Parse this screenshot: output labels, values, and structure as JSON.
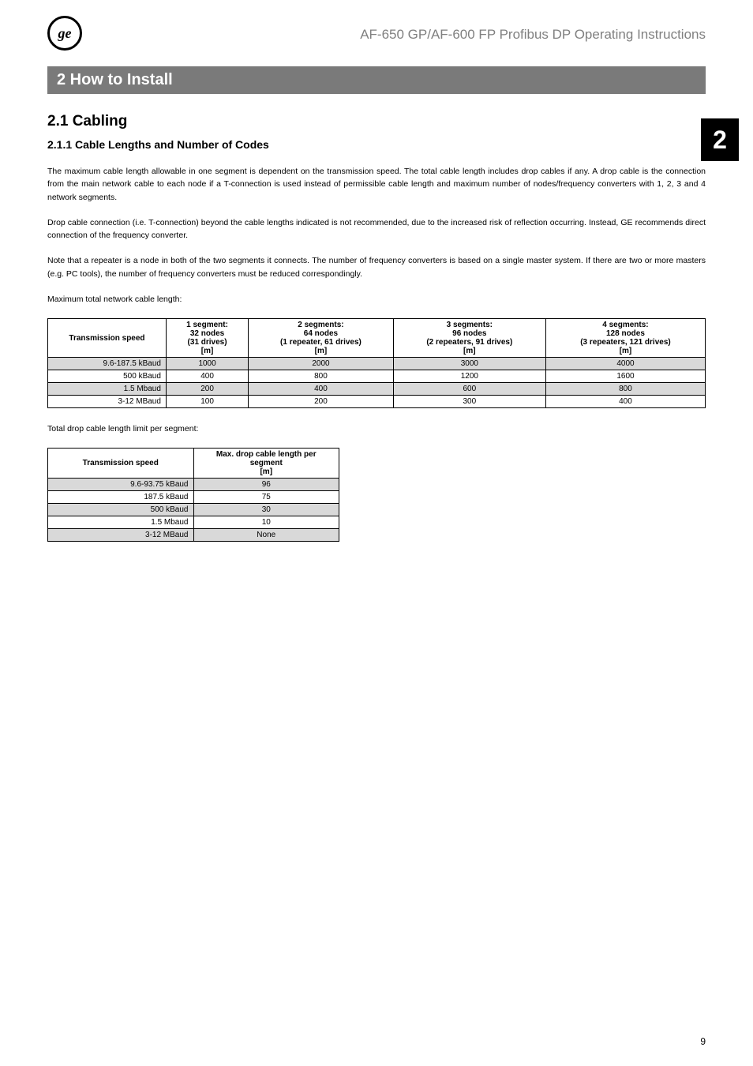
{
  "header": {
    "logo_text": "ge",
    "doc_title": "AF-650 GP/AF-600 FP Profibus DP Operating Instructions"
  },
  "side_tab": "2",
  "chapter": {
    "bar_title": "2 How to Install",
    "section_num": "2.1 Cabling",
    "subsection": "2.1.1  Cable Lengths and Number of Codes"
  },
  "paragraphs": {
    "p1": "The maximum cable length allowable in one segment is dependent on the transmission speed. The total cable length includes drop cables if any. A drop cable is the connection from the main network cable to each node if a T-connection is used instead of permissible cable length and maximum number of nodes/frequency converters with 1, 2, 3 and 4 network segments.",
    "p2": "Drop cable connection (i.e. T-connection) beyond the cable lengths indicated is not recommended, due to the increased risk of reflection occurring. Instead, GE recommends direct connection of the frequency converter.",
    "p3": "Note that a repeater is a node in both of the two segments it connects. The number of frequency converters is based on a single master system. If there are two or more masters (e.g. PC tools), the number of frequency converters must be reduced correspondingly.",
    "p4": "Maximum total network cable length:",
    "p5": "Total drop cable length limit per segment:"
  },
  "table1": {
    "headers": {
      "c0": "Transmission speed",
      "c1_l1": "1 segment:",
      "c1_l2": "32 nodes",
      "c1_l3": "(31 drives)",
      "c1_l4": "[m]",
      "c2_l1": "2 segments:",
      "c2_l2": "64 nodes",
      "c2_l3": "(1 repeater, 61 drives)",
      "c2_l4": "[m]",
      "c3_l1": "3 segments:",
      "c3_l2": "96 nodes",
      "c3_l3": "(2 repeaters, 91 drives)",
      "c3_l4": "[m]",
      "c4_l1": "4 segments:",
      "c4_l2": "128 nodes",
      "c4_l3": "(3 repeaters, 121 drives)",
      "c4_l4": "[m]"
    },
    "rows": [
      {
        "shaded": true,
        "c0": "9.6-187.5 kBaud",
        "c1": "1000",
        "c2": "2000",
        "c3": "3000",
        "c4": "4000"
      },
      {
        "shaded": false,
        "c0": "500 kBaud",
        "c1": "400",
        "c2": "800",
        "c3": "1200",
        "c4": "1600"
      },
      {
        "shaded": true,
        "c0": "1.5 Mbaud",
        "c1": "200",
        "c2": "400",
        "c3": "600",
        "c4": "800"
      },
      {
        "shaded": false,
        "c0": "3-12 MBaud",
        "c1": "100",
        "c2": "200",
        "c3": "300",
        "c4": "400"
      }
    ]
  },
  "table2": {
    "headers": {
      "c0": "Transmission speed",
      "c1_l1": "Max. drop cable length per",
      "c1_l2": "segment",
      "c1_l3": "[m]"
    },
    "rows": [
      {
        "shaded": true,
        "c0": "9.6-93.75 kBaud",
        "c1": "96"
      },
      {
        "shaded": false,
        "c0": "187.5 kBaud",
        "c1": "75"
      },
      {
        "shaded": true,
        "c0": "500 kBaud",
        "c1": "30"
      },
      {
        "shaded": false,
        "c0": "1.5 Mbaud",
        "c1": "10"
      },
      {
        "shaded": true,
        "c0": "3-12 MBaud",
        "c1": "None"
      }
    ]
  },
  "footer": {
    "page": "9"
  },
  "colors": {
    "bar_bg": "#7a7a7a",
    "tab_bg": "#000000",
    "shaded_row": "#d9d9d9",
    "header_grey": "#808080"
  }
}
